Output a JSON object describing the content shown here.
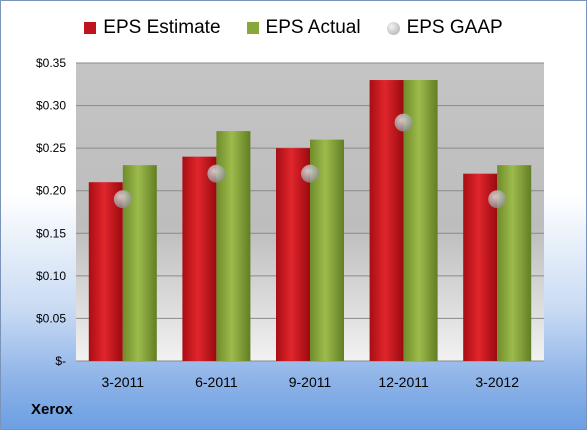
{
  "legend": {
    "estimate": "EPS Estimate",
    "actual": "EPS Actual",
    "gaap": "EPS GAAP"
  },
  "company": "Xerox",
  "colors": {
    "estimate": "#c0141c",
    "actual": "#88a63c",
    "gaap": "#b8b8b8"
  },
  "chart_data": {
    "type": "bar",
    "categories": [
      "3-2011",
      "6-2011",
      "9-2011",
      "12-2011",
      "3-2012"
    ],
    "series": [
      {
        "name": "EPS Estimate",
        "values": [
          0.21,
          0.24,
          0.25,
          0.33,
          0.22
        ]
      },
      {
        "name": "EPS Actual",
        "values": [
          0.23,
          0.27,
          0.26,
          0.33,
          0.23
        ]
      },
      {
        "name": "EPS GAAP",
        "values": [
          0.19,
          0.22,
          0.22,
          0.28,
          0.19
        ]
      }
    ],
    "ylim": [
      0,
      0.35
    ],
    "yticks": [
      0,
      0.05,
      0.1,
      0.15,
      0.2,
      0.25,
      0.3,
      0.35
    ],
    "ytick_labels": [
      "$-",
      "$0.05",
      "$0.10",
      "$0.15",
      "$0.20",
      "$0.25",
      "$0.30",
      "$0.35"
    ],
    "grid": true,
    "legend_position": "top"
  }
}
